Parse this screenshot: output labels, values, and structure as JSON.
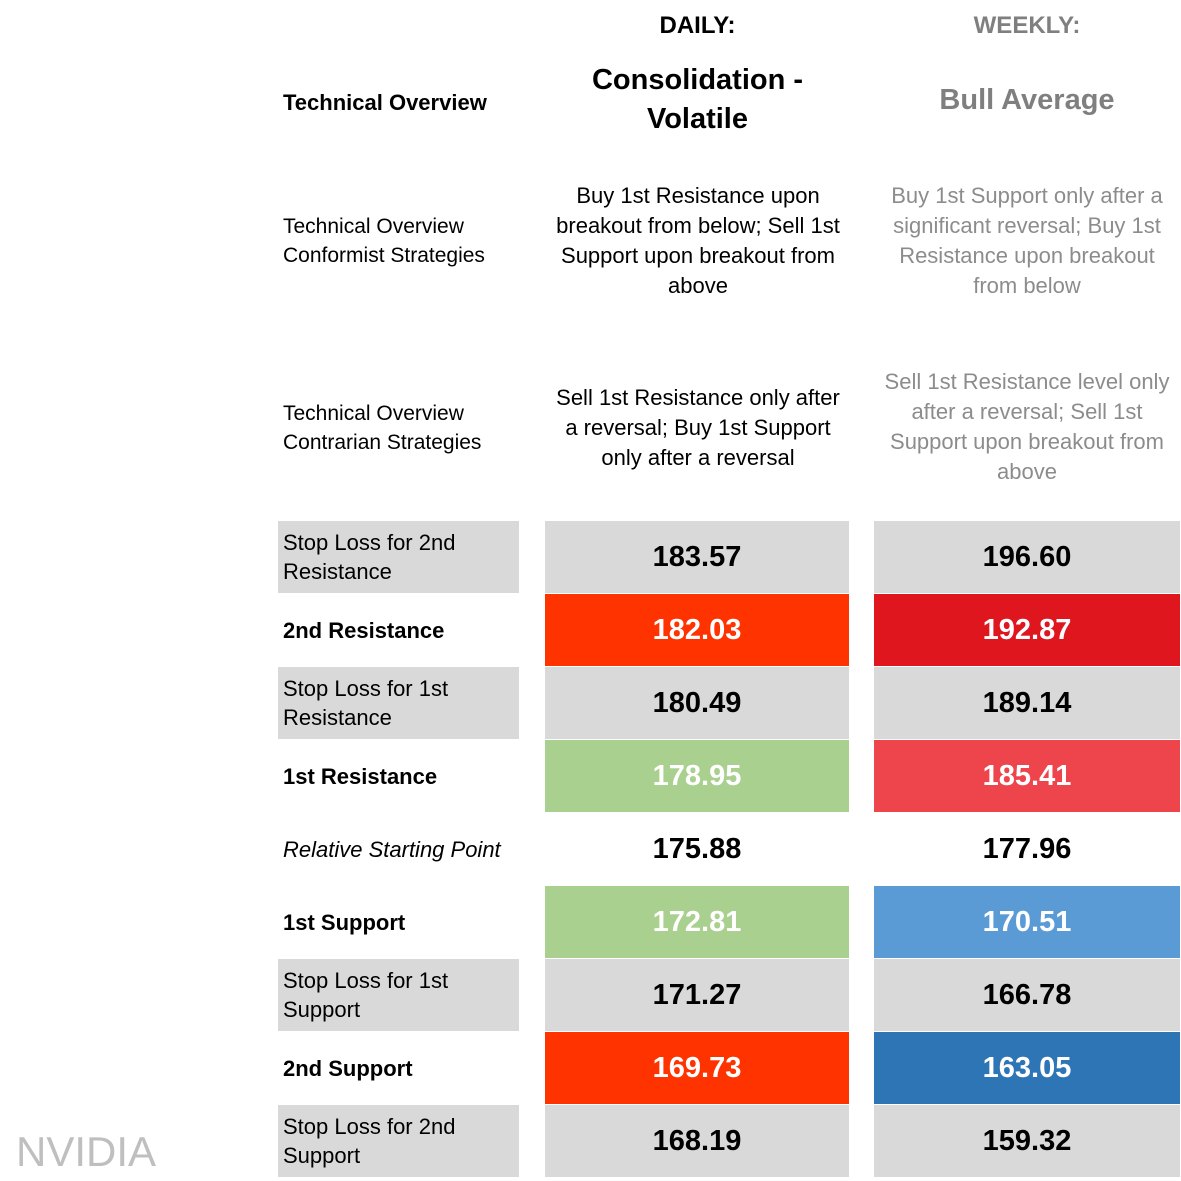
{
  "header": {
    "daily_label": "DAILY:",
    "weekly_label": "WEEKLY:"
  },
  "overview": {
    "label": "Technical Overview",
    "daily": "Consolidation - Volatile",
    "weekly": "Bull Average"
  },
  "conformist": {
    "label": "Technical Overview Conformist Strategies",
    "daily": "Buy 1st Resistance upon breakout from below; Sell 1st Support upon breakout from above",
    "weekly": "Buy 1st Support only after a significant reversal; Buy 1st Resistance upon breakout from below"
  },
  "contrarian": {
    "label": "Technical Overview Contrarian Strategies",
    "daily": "Sell 1st Resistance only after a reversal; Buy 1st Support only after a reversal",
    "weekly": "Sell 1st Resistance level only after a reversal; Sell 1st Support upon breakout from above"
  },
  "levels": [
    {
      "label": "Stop Loss for 2nd Resistance",
      "daily": "183.57",
      "weekly": "196.60"
    },
    {
      "label": "2nd Resistance",
      "daily": "182.03",
      "weekly": "192.87"
    },
    {
      "label": "Stop Loss for 1st Resistance",
      "daily": "180.49",
      "weekly": "189.14"
    },
    {
      "label": "1st Resistance",
      "daily": "178.95",
      "weekly": "185.41"
    },
    {
      "label": "Relative Starting Point",
      "daily": "175.88",
      "weekly": "177.96"
    },
    {
      "label": "1st Support",
      "daily": "172.81",
      "weekly": "170.51"
    },
    {
      "label": "Stop Loss for 1st Support",
      "daily": "171.27",
      "weekly": "166.78"
    },
    {
      "label": "2nd Support",
      "daily": "169.73",
      "weekly": "163.05"
    },
    {
      "label": "Stop Loss for 2nd Support",
      "daily": "168.19",
      "weekly": "159.32"
    }
  ],
  "colors": {
    "grey_row": "#d9d9d9",
    "daily_resistance_2": "#ff3300",
    "daily_resistance_1": "#a9d08e",
    "daily_support_1": "#a9d08e",
    "daily_support_2": "#ff3300",
    "weekly_resistance_2": "#e0161f",
    "weekly_resistance_1": "#ee444c",
    "weekly_support_1": "#5b9bd5",
    "weekly_support_2": "#2e75b6"
  },
  "watermark": "NVIDIA"
}
